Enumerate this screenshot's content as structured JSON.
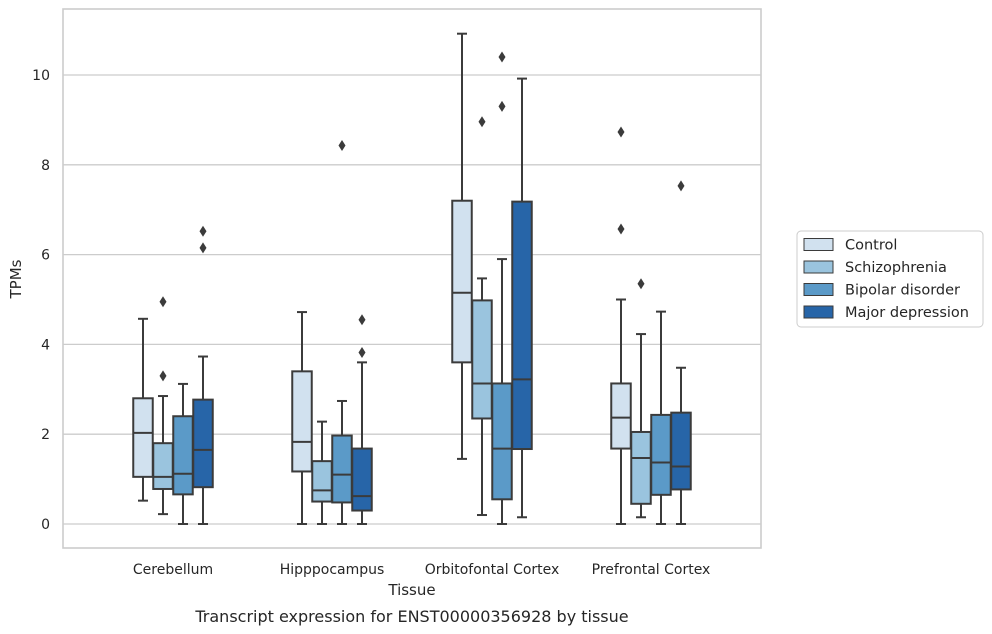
{
  "chart_data": {
    "type": "boxplot",
    "title": "",
    "caption": "Transcript expression for ENST00000356928 by tissue",
    "xlabel": "Tissue",
    "ylabel": "TPMs",
    "ylim": [
      -0.5,
      11.5
    ],
    "yticks": [
      0,
      2,
      4,
      6,
      8,
      10
    ],
    "grid": "horizontal",
    "legend_position": "right",
    "categories": [
      "Cerebellum",
      "Hipppocampus",
      "Orbitofontal Cortex",
      "Prefrontal Cortex"
    ],
    "series": [
      {
        "name": "Control",
        "color": "#d1e1ef",
        "boxes": [
          {
            "whisker_low": 0.52,
            "q1": 1.05,
            "median": 2.03,
            "q3": 2.8,
            "whisker_high": 4.57,
            "outliers": []
          },
          {
            "whisker_low": 0.0,
            "q1": 1.17,
            "median": 1.83,
            "q3": 3.4,
            "whisker_high": 4.72,
            "outliers": []
          },
          {
            "whisker_low": 1.45,
            "q1": 3.6,
            "median": 5.15,
            "q3": 7.2,
            "whisker_high": 10.92,
            "outliers": []
          },
          {
            "whisker_low": 0.0,
            "q1": 1.68,
            "median": 2.37,
            "q3": 3.13,
            "whisker_high": 5.0,
            "outliers": [
              6.57,
              8.73
            ]
          }
        ]
      },
      {
        "name": "Schizophrenia",
        "color": "#9ac4de",
        "boxes": [
          {
            "whisker_low": 0.22,
            "q1": 0.78,
            "median": 1.05,
            "q3": 1.8,
            "whisker_high": 2.85,
            "outliers": [
              3.3,
              4.95
            ]
          },
          {
            "whisker_low": 0.0,
            "q1": 0.5,
            "median": 0.75,
            "q3": 1.4,
            "whisker_high": 2.28,
            "outliers": []
          },
          {
            "whisker_low": 0.2,
            "q1": 2.35,
            "median": 3.13,
            "q3": 4.98,
            "whisker_high": 5.47,
            "outliers": [
              8.96
            ]
          },
          {
            "whisker_low": 0.15,
            "q1": 0.45,
            "median": 1.47,
            "q3": 2.05,
            "whisker_high": 4.23,
            "outliers": [
              5.35
            ]
          }
        ]
      },
      {
        "name": "Bipolar disorder",
        "color": "#5b9ac8",
        "boxes": [
          {
            "whisker_low": 0.0,
            "q1": 0.66,
            "median": 1.12,
            "q3": 2.4,
            "whisker_high": 3.12,
            "outliers": []
          },
          {
            "whisker_low": 0.0,
            "q1": 0.48,
            "median": 1.1,
            "q3": 1.97,
            "whisker_high": 2.74,
            "outliers": [
              8.43
            ]
          },
          {
            "whisker_low": 0.0,
            "q1": 0.55,
            "median": 1.68,
            "q3": 3.13,
            "whisker_high": 5.9,
            "outliers": [
              9.3,
              10.4
            ]
          },
          {
            "whisker_low": 0.0,
            "q1": 0.65,
            "median": 1.37,
            "q3": 2.43,
            "whisker_high": 4.73,
            "outliers": []
          }
        ]
      },
      {
        "name": "Major depression",
        "color": "#2765a8",
        "boxes": [
          {
            "whisker_low": 0.0,
            "q1": 0.82,
            "median": 1.65,
            "q3": 2.77,
            "whisker_high": 3.73,
            "outliers": [
              6.15,
              6.52
            ]
          },
          {
            "whisker_low": 0.0,
            "q1": 0.3,
            "median": 0.62,
            "q3": 1.68,
            "whisker_high": 3.6,
            "outliers": [
              3.82,
              4.55
            ]
          },
          {
            "whisker_low": 0.15,
            "q1": 1.67,
            "median": 3.22,
            "q3": 7.18,
            "whisker_high": 9.92,
            "outliers": []
          },
          {
            "whisker_low": 0.0,
            "q1": 0.77,
            "median": 1.28,
            "q3": 2.48,
            "whisker_high": 3.48,
            "outliers": [
              7.53
            ]
          }
        ]
      }
    ]
  }
}
